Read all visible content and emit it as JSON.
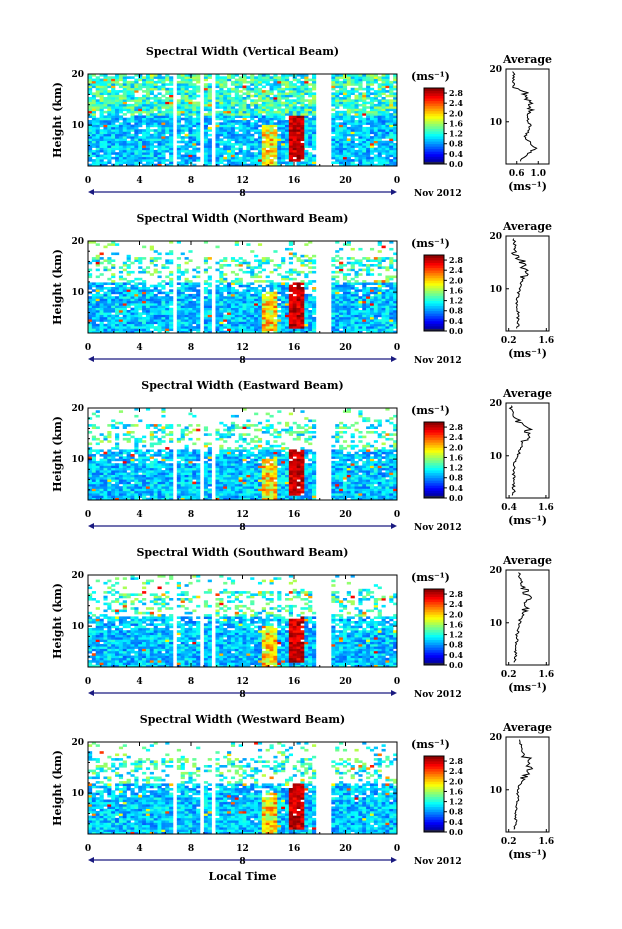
{
  "figure": {
    "xlabel": "Local Time",
    "colorbar_unit": "(ms⁻¹)",
    "date_label": "Nov 2012",
    "day_label": "8"
  },
  "chart_data": [
    {
      "type": "heatmap",
      "title": "Spectral Width (Vertical Beam)",
      "xlabel": "",
      "ylabel": "Height (km)",
      "xlim": [
        0,
        24
      ],
      "ylim": [
        2,
        20
      ],
      "x_ticks": [
        "0",
        "4",
        "8",
        "12",
        "16",
        "20",
        "0"
      ],
      "y_ticks": [
        "10",
        "20"
      ],
      "colorbar_ticks": [
        "2.8",
        "2.4",
        "2.0",
        "1.6",
        "1.2",
        "0.8",
        "0.4",
        "0.0"
      ],
      "colorbar_range": [
        0,
        3.0
      ],
      "data_gaps_hours": [
        [
          6.5,
          6.9
        ],
        [
          8.6,
          9.0
        ],
        [
          9.5,
          10.0
        ],
        [
          17.8,
          18.8
        ]
      ],
      "profile": {
        "title": "Average",
        "xlabel": "(ms⁻¹)",
        "x_ticks": [
          "0.6",
          "1.0"
        ],
        "xlim": [
          0.4,
          1.2
        ],
        "y_ticks": [
          "10",
          "20"
        ],
        "height": [
          3,
          5,
          7,
          9,
          11,
          13,
          15,
          17,
          19
        ],
        "width": [
          0.7,
          0.95,
          0.75,
          0.85,
          0.8,
          0.9,
          0.8,
          0.55,
          0.55
        ]
      }
    },
    {
      "type": "heatmap",
      "title": "Spectral Width (Northward Beam)",
      "xlabel": "",
      "ylabel": "Height (km)",
      "xlim": [
        0,
        24
      ],
      "ylim": [
        2,
        20
      ],
      "x_ticks": [
        "0",
        "4",
        "8",
        "12",
        "16",
        "20",
        "0"
      ],
      "y_ticks": [
        "10",
        "20"
      ],
      "colorbar_ticks": [
        "2.8",
        "2.4",
        "2.0",
        "1.6",
        "1.2",
        "0.8",
        "0.4",
        "0.0"
      ],
      "colorbar_range": [
        0,
        3.0
      ],
      "data_gaps_hours": [
        [
          6.5,
          6.9
        ],
        [
          8.6,
          9.0
        ],
        [
          9.5,
          10.0
        ],
        [
          17.8,
          18.8
        ]
      ],
      "profile": {
        "title": "Average",
        "xlabel": "(ms⁻¹)",
        "x_ticks": [
          "0.2",
          "1.6"
        ],
        "xlim": [
          0.1,
          1.7
        ],
        "y_ticks": [
          "10",
          "20"
        ],
        "height": [
          3,
          5,
          7,
          9,
          11,
          13,
          15,
          17,
          19
        ],
        "width": [
          0.55,
          0.55,
          0.5,
          0.55,
          0.65,
          0.85,
          0.7,
          0.45,
          0.4
        ]
      }
    },
    {
      "type": "heatmap",
      "title": "Spectral Width (Eastward Beam)",
      "xlabel": "",
      "ylabel": "Height (km)",
      "xlim": [
        0,
        24
      ],
      "ylim": [
        2,
        20
      ],
      "x_ticks": [
        "0",
        "4",
        "8",
        "12",
        "16",
        "20",
        "0"
      ],
      "y_ticks": [
        "10",
        "20"
      ],
      "colorbar_ticks": [
        "2.8",
        "2.4",
        "2.0",
        "1.6",
        "1.2",
        "0.8",
        "0.4",
        "0.0"
      ],
      "colorbar_range": [
        0,
        3.0
      ],
      "data_gaps_hours": [
        [
          6.5,
          6.9
        ],
        [
          8.6,
          9.0
        ],
        [
          9.5,
          10.0
        ],
        [
          17.8,
          18.8
        ]
      ],
      "profile": {
        "title": "Average",
        "xlabel": "(ms⁻¹)",
        "x_ticks": [
          "0.4",
          "1.6"
        ],
        "xlim": [
          0.3,
          1.7
        ],
        "y_ticks": [
          "10",
          "20"
        ],
        "height": [
          3,
          5,
          7,
          9,
          11,
          13,
          15,
          17,
          19
        ],
        "width": [
          0.55,
          0.55,
          0.55,
          0.6,
          0.75,
          0.9,
          1.0,
          0.6,
          0.45
        ]
      }
    },
    {
      "type": "heatmap",
      "title": "Spectral Width (Southward Beam)",
      "xlabel": "",
      "ylabel": "Height (km)",
      "xlim": [
        0,
        24
      ],
      "ylim": [
        2,
        20
      ],
      "x_ticks": [
        "0",
        "4",
        "8",
        "12",
        "16",
        "20",
        "0"
      ],
      "y_ticks": [
        "10",
        "20"
      ],
      "colorbar_ticks": [
        "2.8",
        "2.4",
        "2.0",
        "1.6",
        "1.2",
        "0.8",
        "0.4",
        "0.0"
      ],
      "colorbar_range": [
        0,
        3.0
      ],
      "data_gaps_hours": [
        [
          6.5,
          6.9
        ],
        [
          8.6,
          9.0
        ],
        [
          9.5,
          10.0
        ],
        [
          17.8,
          18.8
        ]
      ],
      "profile": {
        "title": "Average",
        "xlabel": "(ms⁻¹)",
        "x_ticks": [
          "0.2",
          "1.6"
        ],
        "xlim": [
          0.1,
          1.7
        ],
        "y_ticks": [
          "10",
          "20"
        ],
        "height": [
          3,
          5,
          7,
          9,
          11,
          13,
          15,
          17,
          19
        ],
        "width": [
          0.45,
          0.45,
          0.5,
          0.55,
          0.65,
          0.9,
          0.95,
          0.7,
          0.6
        ]
      }
    },
    {
      "type": "heatmap",
      "title": "Spectral Width (Westward Beam)",
      "xlabel": "",
      "ylabel": "Height (km)",
      "xlim": [
        0,
        24
      ],
      "ylim": [
        2,
        20
      ],
      "x_ticks": [
        "0",
        "4",
        "8",
        "12",
        "16",
        "20",
        "0"
      ],
      "y_ticks": [
        "10",
        "20"
      ],
      "colorbar_ticks": [
        "2.8",
        "2.4",
        "2.0",
        "1.6",
        "1.2",
        "0.8",
        "0.4",
        "0.0"
      ],
      "colorbar_range": [
        0,
        3.0
      ],
      "data_gaps_hours": [
        [
          6.5,
          6.9
        ],
        [
          8.6,
          9.0
        ],
        [
          9.5,
          10.0
        ],
        [
          17.8,
          18.8
        ]
      ],
      "profile": {
        "title": "Average",
        "xlabel": "(ms⁻¹)",
        "x_ticks": [
          "0.2",
          "1.6"
        ],
        "xlim": [
          0.1,
          1.7
        ],
        "y_ticks": [
          "10",
          "20"
        ],
        "height": [
          3,
          5,
          7,
          9,
          11,
          13,
          15,
          17,
          19
        ],
        "width": [
          0.45,
          0.45,
          0.5,
          0.55,
          0.6,
          0.9,
          1.0,
          0.75,
          0.6
        ]
      }
    }
  ]
}
